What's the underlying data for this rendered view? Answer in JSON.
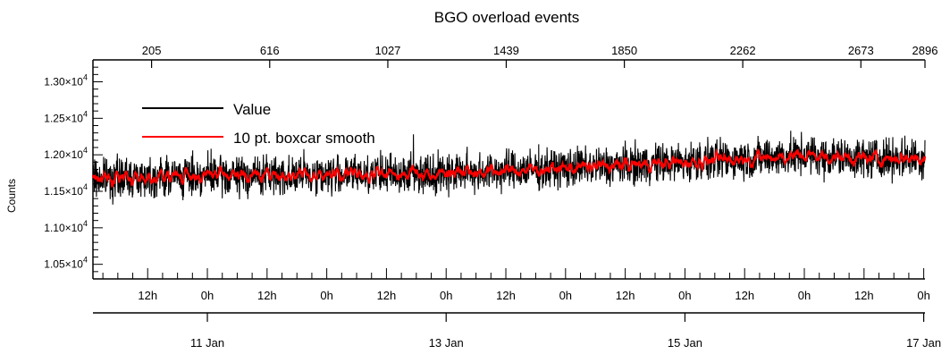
{
  "chart_data": {
    "type": "line",
    "title": "BGO overload events",
    "ylabel": "Counts",
    "ylim": [
      10300,
      13300
    ],
    "y_ticks": [
      {
        "value": 10500,
        "mantissa": "1.05",
        "exp": "4"
      },
      {
        "value": 11000,
        "mantissa": "1.10",
        "exp": "4"
      },
      {
        "value": 11500,
        "mantissa": "1.15",
        "exp": "4"
      },
      {
        "value": 12000,
        "mantissa": "1.20",
        "exp": "4"
      },
      {
        "value": 12500,
        "mantissa": "1.25",
        "exp": "4"
      },
      {
        "value": 13000,
        "mantissa": "1.30",
        "exp": "4"
      }
    ],
    "y_multiplier": "×10",
    "x_range": [
      "2000-01-10T01:00",
      "2000-01-17T00:15"
    ],
    "x_hour_ticks": [
      {
        "time": "2000-01-10T12:00",
        "label": "12h"
      },
      {
        "time": "2000-01-11T00:00",
        "label": "0h"
      },
      {
        "time": "2000-01-11T12:00",
        "label": "12h"
      },
      {
        "time": "2000-01-12T00:00",
        "label": "0h"
      },
      {
        "time": "2000-01-12T12:00",
        "label": "12h"
      },
      {
        "time": "2000-01-13T00:00",
        "label": "0h"
      },
      {
        "time": "2000-01-13T12:00",
        "label": "12h"
      },
      {
        "time": "2000-01-14T00:00",
        "label": "0h"
      },
      {
        "time": "2000-01-14T12:00",
        "label": "12h"
      },
      {
        "time": "2000-01-15T00:00",
        "label": "0h"
      },
      {
        "time": "2000-01-15T12:00",
        "label": "12h"
      },
      {
        "time": "2000-01-16T00:00",
        "label": "0h"
      },
      {
        "time": "2000-01-16T12:00",
        "label": "12h"
      },
      {
        "time": "2000-01-17T00:00",
        "label": "0h"
      }
    ],
    "x_date_ticks": [
      {
        "time": "2000-01-11T00:00",
        "label": "11 Jan"
      },
      {
        "time": "2000-01-13T00:00",
        "label": "13 Jan"
      },
      {
        "time": "2000-01-15T00:00",
        "label": "15 Jan"
      },
      {
        "time": "2000-01-17T00:00",
        "label": "17 Jan"
      }
    ],
    "top_axis_ticks": [
      "205",
      "616",
      "1027",
      "1439",
      "1850",
      "2262",
      "2673",
      "2896"
    ],
    "top_axis_range": [
      1,
      2896
    ],
    "series_trend": {
      "x": [
        "2000-01-10T01:00",
        "2000-01-10T12:00",
        "2000-01-11T00:00",
        "2000-01-11T12:00",
        "2000-01-12T00:00",
        "2000-01-12T12:00",
        "2000-01-13T00:00",
        "2000-01-13T12:00",
        "2000-01-14T00:00",
        "2000-01-14T12:00",
        "2000-01-15T00:00",
        "2000-01-15T12:00",
        "2000-01-16T00:00",
        "2000-01-16T12:00",
        "2000-01-17T00:15"
      ],
      "y": [
        11680,
        11700,
        11720,
        11720,
        11730,
        11740,
        11760,
        11780,
        11820,
        11860,
        11900,
        11950,
        11990,
        11950,
        11960
      ]
    },
    "noise_amplitude": 350,
    "series": [
      {
        "name": "Value",
        "color": "#000000"
      },
      {
        "name": "10 pt. boxcar smooth",
        "color": "#ff0000"
      }
    ],
    "legend_position": "top-left",
    "grid": false
  }
}
